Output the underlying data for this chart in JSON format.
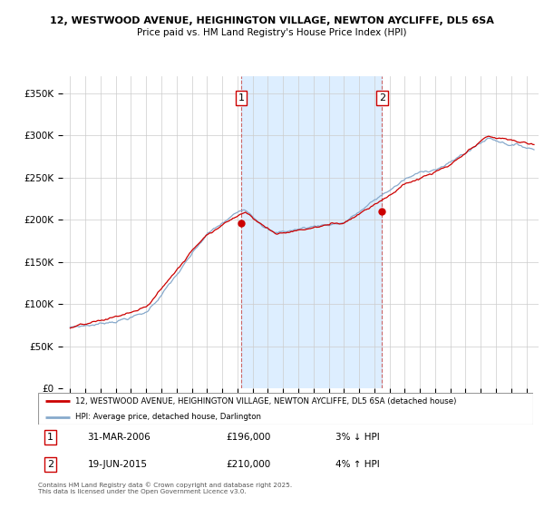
{
  "title1": "12, WESTWOOD AVENUE, HEIGHINGTON VILLAGE, NEWTON AYCLIFFE, DL5 6SA",
  "title2": "Price paid vs. HM Land Registry's House Price Index (HPI)",
  "legend_label1": "12, WESTWOOD AVENUE, HEIGHINGTON VILLAGE, NEWTON AYCLIFFE, DL5 6SA (detached house)",
  "legend_label2": "HPI: Average price, detached house, Darlington",
  "footnote": "Contains HM Land Registry data © Crown copyright and database right 2025.\nThis data is licensed under the Open Government Licence v3.0.",
  "sale1_date": "31-MAR-2006",
  "sale1_price": 196000,
  "sale1_hpi": "3% ↓ HPI",
  "sale2_date": "19-JUN-2015",
  "sale2_price": 210000,
  "sale2_hpi": "4% ↑ HPI",
  "ylim": [
    0,
    370000
  ],
  "yticks": [
    0,
    50000,
    100000,
    150000,
    200000,
    250000,
    300000,
    350000
  ],
  "line_color_price": "#cc0000",
  "line_color_hpi": "#88aacc",
  "shade_color": "#ddeeff",
  "grid_color": "#cccccc",
  "vline_color": "#cc6666",
  "sale1_t": 2006.25,
  "sale2_t": 2015.5,
  "start_year": 1995.0,
  "end_year": 2025.5
}
